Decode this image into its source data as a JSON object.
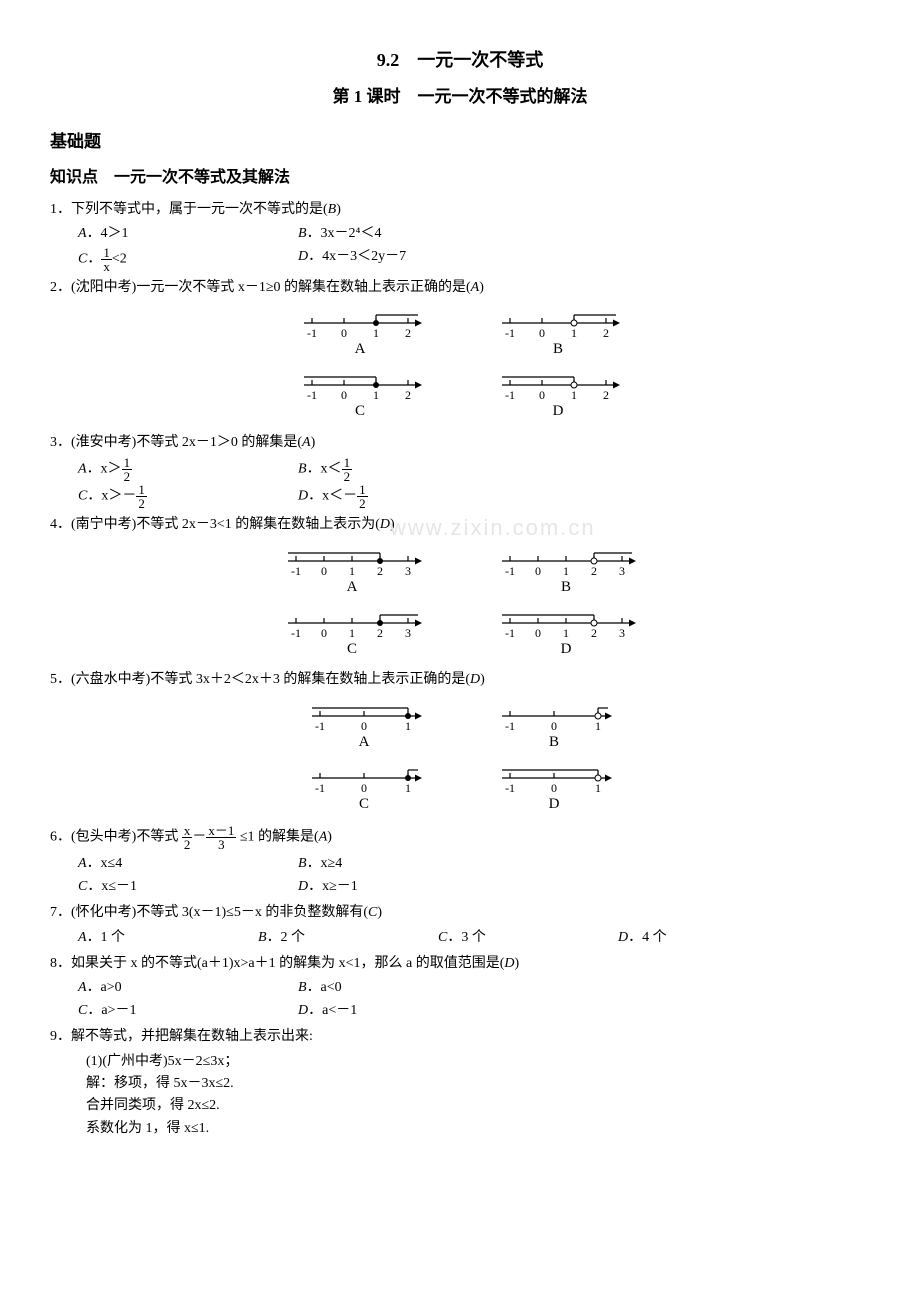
{
  "title": "9.2　一元一次不等式",
  "subtitle": "第 1 课时　一元一次不等式的解法",
  "section_basic": "基础题",
  "section_knowledge": "知识点　一元一次不等式及其解法",
  "q1": {
    "stem": "1．下列不等式中，属于一元一次不等式的是(",
    "ans": "B",
    "close": ")",
    "A": "．4＞1",
    "B": "．3x－2⁴＜4",
    "C_pre": "．",
    "C_suf": "<2",
    "D": "．4x－3＜2y－7"
  },
  "q2": {
    "stem": "2．(沈阳中考)一元一次不等式 x－1≥0 的解集在数轴上表示正确的是(",
    "ans": "A",
    "close": ")",
    "A": "A",
    "B": "B",
    "C": "C",
    "D": "D"
  },
  "q3": {
    "stem": "3．(淮安中考)不等式 2x－1＞0 的解集是(",
    "ans": "A",
    "close": ")",
    "A_pre": "．x＞",
    "B_pre": "．x＜",
    "C_pre": "．x＞－",
    "D_pre": "．x＜－"
  },
  "q4": {
    "stem": "4．(南宁中考)不等式 2x－3<1 的解集在数轴上表示为(",
    "ans": "D",
    "close": ")",
    "A": "A",
    "B": "B",
    "C": "C",
    "D": "D",
    "wm": "www.zixin.com.cn"
  },
  "q5": {
    "stem": "5．(六盘水中考)不等式 3x＋2＜2x＋3 的解集在数轴上表示正确的是(",
    "ans": "D",
    "close": ")",
    "A": "A",
    "B": "B",
    "C": "C",
    "D": "D"
  },
  "q6": {
    "stem_a": "6．(包头中考)不等式",
    "stem_b": "≤1 的解集是(",
    "ans": "A",
    "close": ")",
    "A": "．x≤4",
    "B": "．x≥4",
    "C": "．x≤－1",
    "D": "．x≥－1"
  },
  "q7": {
    "stem": "7．(怀化中考)不等式 3(x－1)≤5－x 的非负整数解有(",
    "ans": "C",
    "close": ")",
    "A": "．1 个",
    "B": "．2 个",
    "C": "．3 个",
    "D": "．4 个"
  },
  "q8": {
    "stem": "8．如果关于 x 的不等式(a＋1)x>a＋1 的解集为 x<1，那么 a 的取值范围是(",
    "ans": "D",
    "close": ")",
    "A": "．a>0",
    "B": "．a<0",
    "C": "．a>－1",
    "D": "．a<－1"
  },
  "q9": {
    "stem": "9．解不等式，并把解集在数轴上表示出来:",
    "l1": "(1)(广州中考)5x－2≤3x；",
    "l2": "解：移项，得 5x－3x≤2.",
    "l3": "合并同类项，得 2x≤2.",
    "l4": "系数化为 1，得 x≤1."
  },
  "nl": {
    "type": "number-line-set",
    "q2": {
      "ticks": [
        -1,
        0,
        1,
        2
      ],
      "rows": [
        {
          "label": "A",
          "mark": 1,
          "open": false,
          "dir": "right"
        },
        {
          "label": "B",
          "mark": 1,
          "open": true,
          "dir": "right"
        },
        {
          "label": "C",
          "mark": 1,
          "open": false,
          "dir": "left"
        },
        {
          "label": "D",
          "mark": 1,
          "open": true,
          "dir": "left"
        }
      ]
    },
    "q4": {
      "ticks": [
        -1,
        0,
        1,
        2,
        3
      ],
      "rows": [
        {
          "label": "A",
          "mark": 2,
          "open": false,
          "dir": "left"
        },
        {
          "label": "B",
          "mark": 2,
          "open": true,
          "dir": "right"
        },
        {
          "label": "C",
          "mark": 2,
          "open": false,
          "dir": "right"
        },
        {
          "label": "D",
          "mark": 2,
          "open": true,
          "dir": "left"
        }
      ]
    },
    "q5": {
      "ticks": [
        -1,
        0,
        1
      ],
      "rows": [
        {
          "label": "A",
          "mark": 1,
          "open": false,
          "dir": "left"
        },
        {
          "label": "B",
          "mark": 1,
          "open": true,
          "dir": "right"
        },
        {
          "label": "C",
          "mark": 1,
          "open": false,
          "dir": "right"
        },
        {
          "label": "D",
          "mark": 1,
          "open": true,
          "dir": "left"
        }
      ]
    },
    "style": {
      "stroke": "#000",
      "stroke_width": 1.2,
      "tick_h": 5,
      "font_size": 12,
      "font_family": "Times New Roman",
      "bracket_h": 8,
      "dot_r": 3
    }
  }
}
